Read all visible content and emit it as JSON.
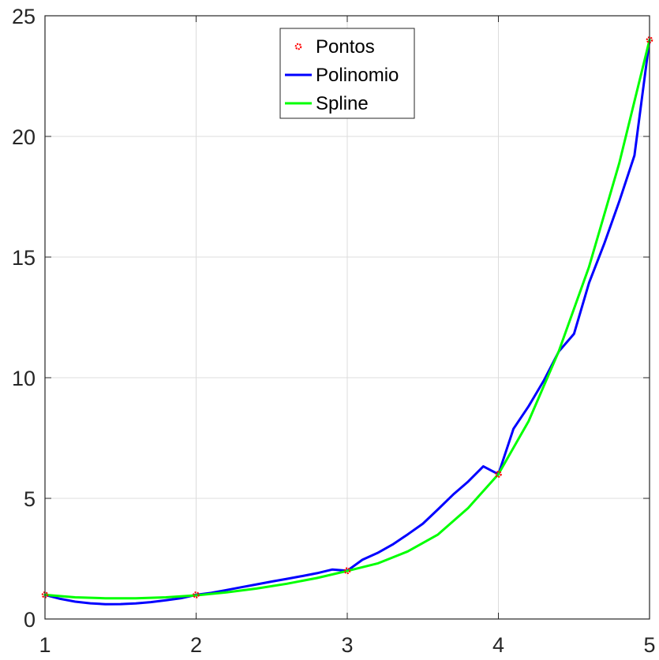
{
  "chart_data": {
    "type": "line",
    "title": "",
    "xlabel": "",
    "ylabel": "",
    "xlim": [
      1,
      5
    ],
    "ylim": [
      0,
      25
    ],
    "grid": true,
    "legend_position": "top-center",
    "x_ticks": [
      "1",
      "2",
      "3",
      "4",
      "5"
    ],
    "y_ticks": [
      "0",
      "5",
      "10",
      "15",
      "20",
      "25"
    ],
    "series": [
      {
        "name": "Pontos",
        "kind": "markers",
        "color": "#ff0000",
        "x": [
          1,
          2,
          3,
          4,
          5
        ],
        "y": [
          1,
          1,
          2,
          6,
          24
        ]
      },
      {
        "name": "Polinomio",
        "kind": "line",
        "color": "#0000ff",
        "x": [
          1,
          1.1,
          1.2,
          1.3,
          1.4,
          1.5,
          1.6,
          1.7,
          1.8,
          1.9,
          2,
          2.1,
          2.2,
          2.3,
          2.4,
          2.5,
          2.6,
          2.7,
          2.8,
          2.9,
          3,
          3.1,
          3.2,
          3.3,
          3.4,
          3.5,
          3.6,
          3.7,
          3.8,
          3.9,
          4,
          4.1,
          4.2,
          4.3,
          4.4,
          4.5,
          4.6,
          4.7,
          4.8,
          4.9,
          5
        ],
        "y": [
          1,
          0.835,
          0.72,
          0.649,
          0.616,
          0.6169,
          0.6464,
          0.7003,
          0.7744,
          0.8639,
          1,
          1.083,
          1.2,
          1.317,
          1.435,
          1.5508,
          1.6638,
          1.7765,
          1.8992,
          2.0485,
          2,
          2.4548,
          2.7364,
          3.0836,
          3.5074,
          3.9508,
          4.5418,
          5.1533,
          5.6976,
          6.3283,
          6,
          7.882,
          8.816,
          9.872,
          11.088,
          11.8164,
          13.9342,
          15.5533,
          17.3114,
          19.2133,
          24
        ]
      },
      {
        "name": "Spline",
        "kind": "line",
        "color": "#00ff00",
        "x": [
          1,
          1.2,
          1.4,
          1.6,
          1.8,
          2,
          2.2,
          2.4,
          2.6,
          2.8,
          3,
          3.2,
          3.4,
          3.6,
          3.8,
          4,
          4.2,
          4.4,
          4.6,
          4.8,
          5
        ],
        "y": [
          1,
          0.9,
          0.86,
          0.86,
          0.9,
          0.98,
          1.1,
          1.26,
          1.46,
          1.7,
          1.99,
          2.3,
          2.8,
          3.5,
          4.6,
          6,
          8.2,
          11.1,
          14.6,
          18.9,
          24
        ]
      }
    ]
  }
}
